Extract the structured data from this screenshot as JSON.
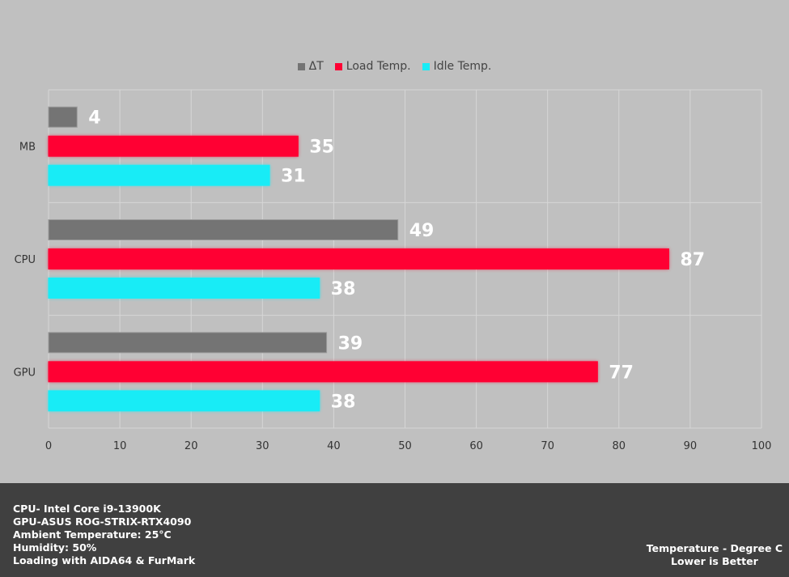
{
  "chart_data": {
    "type": "bar",
    "orientation": "horizontal",
    "categories": [
      "MB",
      "CPU",
      "GPU"
    ],
    "series": [
      {
        "name": "ΔT",
        "color": "#747474",
        "values": [
          4,
          49,
          39
        ]
      },
      {
        "name": "Load Temp.",
        "color": "#ff0033",
        "values": [
          35,
          87,
          77
        ]
      },
      {
        "name": "Idle Temp.",
        "color": "#18ecf6",
        "values": [
          31,
          38,
          38
        ]
      }
    ],
    "xlim": [
      0,
      100
    ],
    "xticks": [
      0,
      10,
      20,
      30,
      40,
      50,
      60,
      70,
      80,
      90,
      100
    ],
    "grid": true,
    "legend_position": "top"
  },
  "footer": {
    "specs": [
      "CPU- Intel Core i9-13900K",
      "GPU-ASUS ROG-STRIX-RTX4090",
      "Ambient Temperature: 25°C",
      "Humidity: 50%",
      "Loading with AIDA64  & FurMark"
    ],
    "notes": [
      "Temperature - Degree C",
      "Lower is Better"
    ]
  }
}
